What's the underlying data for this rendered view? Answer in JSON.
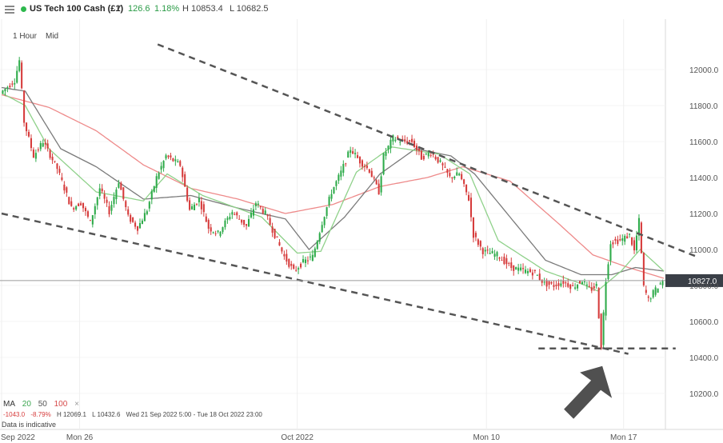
{
  "header": {
    "instrument": "US Tech 100 Cash (£1)",
    "change": "126.6",
    "change_pct": "1.18%",
    "high": "H 10853.4",
    "low": "L 10682.5"
  },
  "chart_controls": {
    "timeframe": "1 Hour",
    "price_type": "Mid"
  },
  "indicator": {
    "label": "MA",
    "p1": "20",
    "p2": "50",
    "p3": "100",
    "close": "×"
  },
  "stats": {
    "change": "-1043.0",
    "change_pct": "-8.79%",
    "high": "H 12069.1",
    "low": "L 10432.6",
    "range": "Wed 21 Sep 2022 5:00 - Tue 18 Oct 2022 23:00"
  },
  "disclaimer": "Data is indicative",
  "colors": {
    "bull": "#2eab4a",
    "bear": "#d63b3b",
    "ma20": "#8fd18a",
    "ma50": "#7a7a7a",
    "ma100": "#ee8a8a",
    "price_line": "#9a9a9a",
    "price_label_bg": "#3a3f47",
    "trendline": "#555555",
    "arrow": "#505050"
  },
  "chart_data": {
    "type": "candlestick",
    "y_axis": {
      "ticks": [
        10200,
        10400,
        10600,
        10800,
        11000,
        11200,
        11400,
        11600,
        11800,
        12000
      ],
      "tick_labels": [
        "10200.0",
        "10400.0",
        "10600.0",
        "10800.0",
        "11000.0",
        "11200.0",
        "11400.0",
        "11600.0",
        "11800.0",
        "12000.0"
      ],
      "range": [
        10000,
        12280
      ]
    },
    "x_axis": {
      "labels": [
        "Sep 2022",
        "Mon 26",
        "Oct 2022",
        "Mon 10",
        "Mon 17"
      ],
      "label_bars": [
        0,
        33,
        125,
        205,
        263
      ],
      "bar_count": 280
    },
    "current_price": 10827.0,
    "current_price_label": "10827.0",
    "path_keypoints": [
      [
        0,
        11870
      ],
      [
        6,
        11940
      ],
      [
        8,
        12050
      ],
      [
        10,
        11710
      ],
      [
        14,
        11520
      ],
      [
        18,
        11600
      ],
      [
        24,
        11450
      ],
      [
        30,
        11230
      ],
      [
        34,
        11260
      ],
      [
        38,
        11150
      ],
      [
        42,
        11340
      ],
      [
        46,
        11210
      ],
      [
        50,
        11380
      ],
      [
        54,
        11180
      ],
      [
        58,
        11120
      ],
      [
        62,
        11220
      ],
      [
        66,
        11400
      ],
      [
        70,
        11520
      ],
      [
        76,
        11470
      ],
      [
        80,
        11220
      ],
      [
        84,
        11280
      ],
      [
        88,
        11120
      ],
      [
        92,
        11090
      ],
      [
        98,
        11210
      ],
      [
        104,
        11130
      ],
      [
        108,
        11260
      ],
      [
        112,
        11200
      ],
      [
        116,
        11080
      ],
      [
        120,
        10960
      ],
      [
        124,
        10880
      ],
      [
        128,
        10930
      ],
      [
        132,
        10960
      ],
      [
        136,
        11150
      ],
      [
        140,
        11320
      ],
      [
        144,
        11430
      ],
      [
        148,
        11560
      ],
      [
        152,
        11490
      ],
      [
        156,
        11440
      ],
      [
        160,
        11320
      ],
      [
        162,
        11520
      ],
      [
        166,
        11620
      ],
      [
        170,
        11600
      ],
      [
        174,
        11600
      ],
      [
        178,
        11510
      ],
      [
        182,
        11540
      ],
      [
        186,
        11480
      ],
      [
        190,
        11400
      ],
      [
        194,
        11420
      ],
      [
        198,
        11280
      ],
      [
        200,
        11080
      ],
      [
        204,
        10990
      ],
      [
        210,
        10970
      ],
      [
        216,
        10900
      ],
      [
        222,
        10880
      ],
      [
        226,
        10870
      ],
      [
        230,
        10810
      ],
      [
        234,
        10800
      ],
      [
        238,
        10820
      ],
      [
        242,
        10790
      ],
      [
        246,
        10830
      ],
      [
        248,
        10790
      ],
      [
        250,
        10780
      ],
      [
        252,
        10800
      ],
      [
        254,
        10460
      ],
      [
        256,
        10830
      ],
      [
        258,
        11040
      ],
      [
        262,
        11050
      ],
      [
        266,
        11080
      ],
      [
        268,
        10990
      ],
      [
        270,
        11160
      ],
      [
        272,
        10790
      ],
      [
        274,
        10720
      ],
      [
        276,
        10760
      ],
      [
        280,
        10827
      ]
    ],
    "moving_averages": {
      "ma20": [
        [
          0,
          11870
        ],
        [
          10,
          11800
        ],
        [
          20,
          11560
        ],
        [
          40,
          11320
        ],
        [
          60,
          11270
        ],
        [
          70,
          11420
        ],
        [
          85,
          11300
        ],
        [
          110,
          11180
        ],
        [
          125,
          10980
        ],
        [
          135,
          10990
        ],
        [
          150,
          11430
        ],
        [
          165,
          11570
        ],
        [
          185,
          11530
        ],
        [
          198,
          11420
        ],
        [
          210,
          11050
        ],
        [
          230,
          10880
        ],
        [
          245,
          10810
        ],
        [
          252,
          10770
        ],
        [
          262,
          10880
        ],
        [
          270,
          11000
        ],
        [
          280,
          10880
        ]
      ],
      "ma50": [
        [
          0,
          11900
        ],
        [
          10,
          11880
        ],
        [
          25,
          11560
        ],
        [
          40,
          11460
        ],
        [
          60,
          11280
        ],
        [
          80,
          11300
        ],
        [
          100,
          11230
        ],
        [
          120,
          11170
        ],
        [
          130,
          11000
        ],
        [
          145,
          11180
        ],
        [
          160,
          11420
        ],
        [
          175,
          11560
        ],
        [
          190,
          11520
        ],
        [
          200,
          11420
        ],
        [
          215,
          11180
        ],
        [
          230,
          10940
        ],
        [
          245,
          10860
        ],
        [
          258,
          10860
        ],
        [
          268,
          10900
        ],
        [
          280,
          10880
        ]
      ],
      "ma100": [
        [
          0,
          11860
        ],
        [
          20,
          11790
        ],
        [
          40,
          11660
        ],
        [
          60,
          11470
        ],
        [
          80,
          11340
        ],
        [
          100,
          11280
        ],
        [
          120,
          11200
        ],
        [
          140,
          11250
        ],
        [
          160,
          11350
        ],
        [
          180,
          11400
        ],
        [
          195,
          11460
        ],
        [
          215,
          11380
        ],
        [
          235,
          11150
        ],
        [
          250,
          10970
        ],
        [
          265,
          10900
        ],
        [
          280,
          10840
        ]
      ]
    },
    "trendlines": [
      {
        "style": "dashed",
        "from": [
          66,
          12140
        ],
        "to": [
          294,
          10960
        ]
      },
      {
        "style": "dashed",
        "from": [
          0,
          11200
        ],
        "to": [
          265,
          10420
        ]
      },
      {
        "style": "dashed",
        "from": [
          227,
          10450
        ],
        "to": [
          285,
          10450
        ]
      }
    ]
  }
}
